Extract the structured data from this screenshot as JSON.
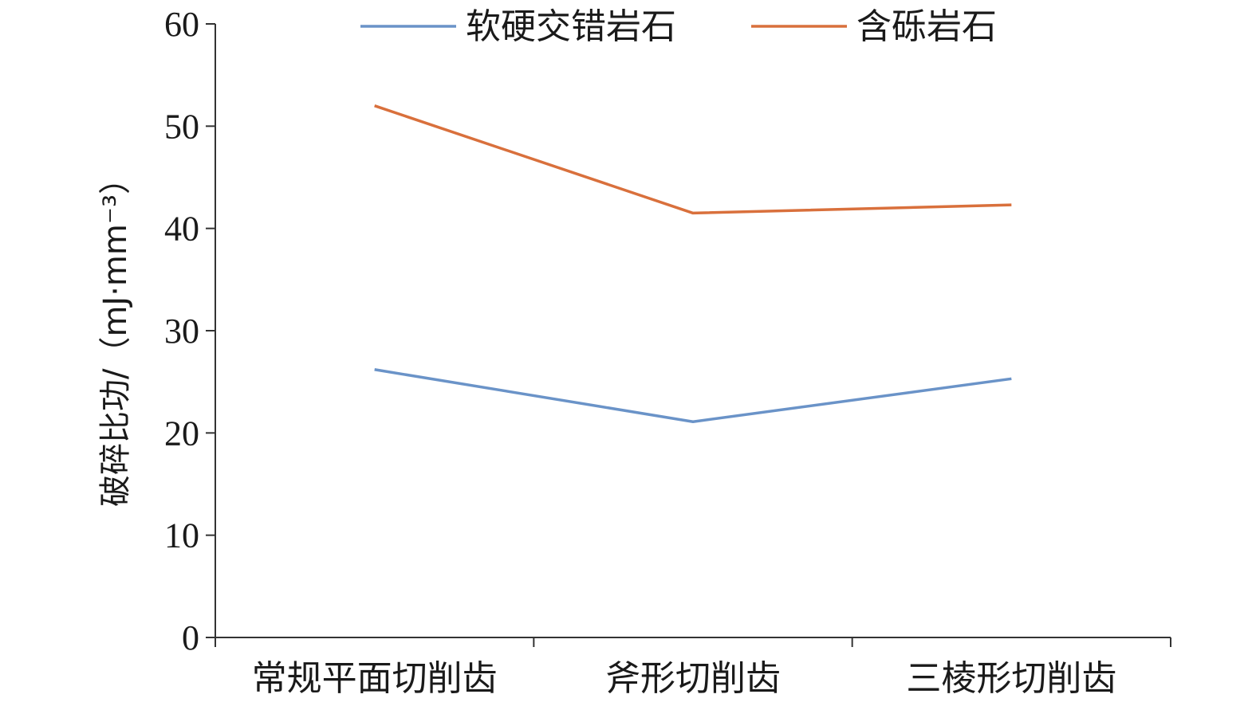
{
  "chart_data": {
    "type": "line",
    "title": "",
    "xlabel": "",
    "ylabel": "破碎比功/（mJ·mm⁻³）",
    "categories": [
      "常规平面切削齿",
      "斧形切削齿",
      "三棱形切削齿"
    ],
    "ylim": [
      0,
      60
    ],
    "yticks": [
      0,
      10,
      20,
      30,
      40,
      50,
      60
    ],
    "grid": false,
    "legend_position": "top",
    "series": [
      {
        "name": "软硬交错岩石",
        "color": "#6a93c8",
        "values": [
          26.2,
          21.1,
          25.3
        ]
      },
      {
        "name": "含砾岩石",
        "color": "#d9703c",
        "values": [
          52.0,
          41.5,
          42.3
        ]
      }
    ]
  }
}
